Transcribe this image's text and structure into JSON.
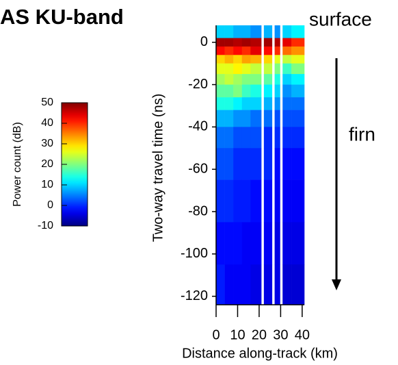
{
  "chart_data": {
    "type": "heatmap",
    "title": "AS KU-band",
    "annotations": [
      "surface",
      "firn"
    ],
    "xlabel": "Distance along-track (km)",
    "ylabel": "Two-way travel time (ns)",
    "x_edges": [
      0,
      4,
      8,
      12,
      16,
      21,
      22.2,
      26,
      27.2,
      29.7,
      30.9,
      35,
      41
    ],
    "y_edges": [
      8,
      2,
      -2,
      -6,
      -10,
      -15,
      -20,
      -26,
      -32,
      -40,
      -50,
      -65,
      -85,
      -105,
      -124
    ],
    "z": [
      [
        10,
        10,
        8,
        8,
        6,
        null,
        8,
        null,
        6,
        null,
        10,
        12
      ],
      [
        48,
        48,
        47,
        48,
        47,
        null,
        48,
        null,
        47,
        null,
        44,
        40
      ],
      [
        42,
        40,
        42,
        40,
        44,
        null,
        42,
        null,
        40,
        null,
        36,
        34
      ],
      [
        30,
        32,
        30,
        33,
        32,
        null,
        30,
        null,
        26,
        null,
        24,
        26
      ],
      [
        26,
        26,
        28,
        26,
        24,
        null,
        24,
        null,
        20,
        null,
        16,
        20
      ],
      [
        22,
        24,
        22,
        20,
        20,
        null,
        18,
        null,
        14,
        null,
        10,
        12
      ],
      [
        18,
        18,
        20,
        16,
        14,
        null,
        12,
        null,
        10,
        null,
        6,
        8
      ],
      [
        14,
        14,
        12,
        10,
        10,
        null,
        8,
        null,
        6,
        null,
        4,
        4
      ],
      [
        8,
        8,
        6,
        6,
        4,
        null,
        4,
        null,
        2,
        null,
        2,
        2
      ],
      [
        4,
        4,
        2,
        2,
        2,
        null,
        0,
        null,
        0,
        null,
        0,
        0
      ],
      [
        2,
        2,
        0,
        0,
        0,
        null,
        0,
        null,
        -2,
        null,
        -2,
        -2
      ],
      [
        0,
        0,
        -1,
        -1,
        -2,
        null,
        -2,
        null,
        -3,
        null,
        -3,
        -3
      ],
      [
        -2,
        -2,
        -2,
        -3,
        -3,
        null,
        -3,
        null,
        -4,
        null,
        -4,
        -4
      ],
      [
        -1,
        -3,
        -3,
        -3,
        -4,
        null,
        -4,
        null,
        -4,
        null,
        -5,
        -5
      ]
    ],
    "xlim": [
      0,
      41
    ],
    "xticks": [
      0,
      10,
      20,
      30,
      40
    ],
    "ylim": [
      -124,
      8
    ],
    "yticks": [
      0,
      -20,
      -40,
      -60,
      -80,
      -100,
      -120
    ],
    "colormap": "jet",
    "colorbar_label": "Power count (dB)",
    "clim": [
      -10,
      50
    ],
    "cticks": [
      50,
      40,
      30,
      20,
      10,
      0,
      -10
    ]
  }
}
